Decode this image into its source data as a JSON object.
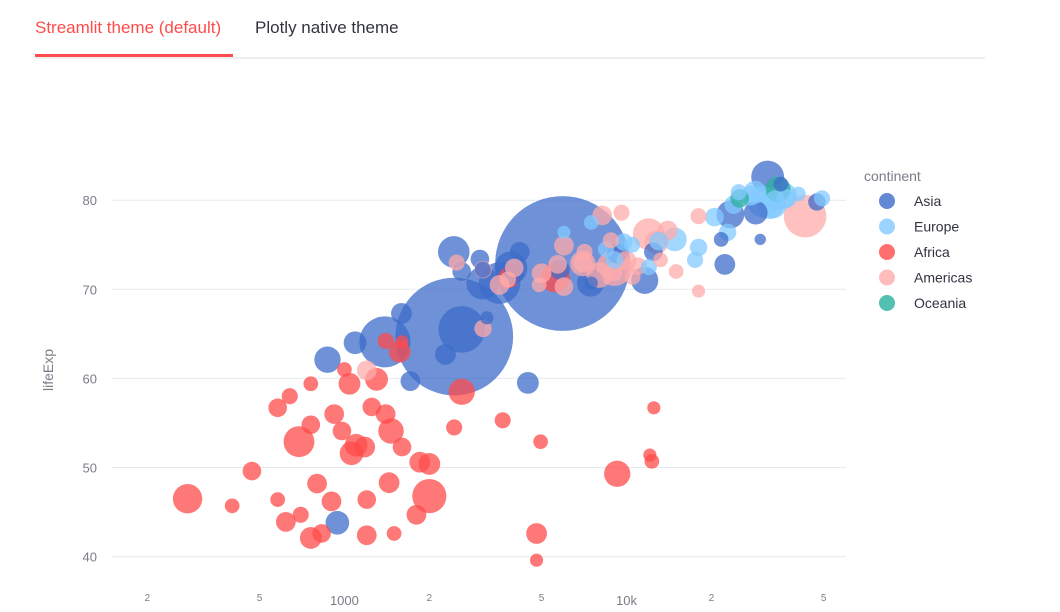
{
  "tabs": [
    {
      "label": "Streamlit theme (default)",
      "active": true
    },
    {
      "label": "Plotly native theme",
      "active": false
    }
  ],
  "chart_data": {
    "type": "scatter",
    "subtype": "bubble",
    "title": "",
    "xlabel": "",
    "ylabel": "lifeExp",
    "x_scale": "log",
    "xlim": [
      150,
      60000
    ],
    "ylim": [
      38.5,
      89
    ],
    "y_ticks": [
      40,
      50,
      60,
      70,
      80
    ],
    "x_ticks": [
      {
        "value": 200,
        "label": "2"
      },
      {
        "value": 500,
        "label": "5"
      },
      {
        "value": 1000,
        "label": "1000"
      },
      {
        "value": 2000,
        "label": "2"
      },
      {
        "value": 5000,
        "label": "5"
      },
      {
        "value": 10000,
        "label": "10k"
      },
      {
        "value": 20000,
        "label": "2"
      },
      {
        "value": 50000,
        "label": "5"
      }
    ],
    "grid": "horizontal",
    "legend": {
      "title": "continent",
      "position": "right"
    },
    "series": [
      {
        "name": "Asia",
        "color": "#3d6cc9",
        "points": [
          [
            5937,
            72.9,
            42
          ],
          [
            2452,
            64.7,
            32
          ],
          [
            2605,
            65.5,
            5
          ],
          [
            1391,
            64.1,
            6
          ],
          [
            3548,
            70.7,
            4
          ],
          [
            3095,
            70.7,
            2.5
          ],
          [
            3890,
            72.4,
            2.5
          ],
          [
            7458,
            70.7,
            1.7
          ],
          [
            11606,
            71.0,
            1.7
          ],
          [
            31656,
            82.6,
            2.5
          ],
          [
            28718,
            78.6,
            1.3
          ],
          [
            2442,
            74.2,
            2.3
          ],
          [
            1091,
            64.0,
            1.2
          ],
          [
            944,
            43.8,
            1.3
          ],
          [
            4471,
            59.5,
            1.1
          ],
          [
            9253,
            74.0,
            0.9
          ],
          [
            1593,
            67.3,
            1.0
          ],
          [
            871,
            62.1,
            1.6
          ],
          [
            22316,
            72.8,
            1.0
          ],
          [
            23348,
            78.4,
            1.8
          ],
          [
            4184,
            74.2,
            0.9
          ],
          [
            3970,
            71.7,
            0.9
          ],
          [
            2281,
            62.7,
            1.0
          ],
          [
            1713,
            59.7,
            0.9
          ],
          [
            3022,
            73.4,
            0.8
          ],
          [
            47307,
            79.8,
            0.7
          ],
          [
            12452,
            74.2,
            0.8
          ],
          [
            2605,
            72.0,
            0.8
          ],
          [
            35278,
            81.8,
            0.5
          ],
          [
            21655,
            75.6,
            0.5
          ],
          [
            3095,
            72.2,
            0.6
          ],
          [
            5800,
            72.2,
            0.9
          ],
          [
            29796,
            75.6,
            0.3
          ],
          [
            7500,
            70.7,
            0.4
          ],
          [
            3200,
            66.8,
            0.4
          ]
        ]
      },
      {
        "name": "Europe",
        "color": "#83c9ff",
        "points": [
          [
            30470,
            79.8,
            2.3
          ],
          [
            32170,
            79.4,
            1.7
          ],
          [
            33203,
            79.4,
            1.5
          ],
          [
            36126,
            80.5,
            1.6
          ],
          [
            28570,
            80.9,
            1.2
          ],
          [
            14843,
            75.6,
            1.3
          ],
          [
            13000,
            75.4,
            0.8
          ],
          [
            20510,
            78.1,
            0.8
          ],
          [
            22833,
            76.4,
            0.7
          ],
          [
            24000,
            79.5,
            0.8
          ],
          [
            36797,
            80.2,
            0.8
          ],
          [
            33692,
            80.0,
            0.9
          ],
          [
            27538,
            80.5,
            0.9
          ],
          [
            10461,
            75.0,
            0.6
          ],
          [
            18008,
            74.7,
            0.7
          ],
          [
            9786,
            75.3,
            0.7
          ],
          [
            8458,
            74.5,
            0.6
          ],
          [
            9065,
            73.3,
            0.7
          ],
          [
            40676,
            80.7,
            0.5
          ],
          [
            49357,
            80.2,
            0.6
          ],
          [
            6000,
            76.4,
            0.4
          ],
          [
            7500,
            77.5,
            0.5
          ],
          [
            17500,
            73.3,
            0.6
          ],
          [
            12000,
            72.5,
            0.6
          ],
          [
            25000,
            80.9,
            0.6
          ]
        ]
      },
      {
        "name": "Africa",
        "color": "#ff4b4b",
        "points": [
          [
            278,
            46.5,
            2.0
          ],
          [
            2000,
            46.8,
            2.7
          ],
          [
            690,
            52.9,
            2.2
          ],
          [
            2605,
            58.5,
            1.6
          ],
          [
            5581,
            71.3,
            2.0
          ],
          [
            1463,
            54.1,
            1.5
          ],
          [
            1060,
            51.6,
            1.3
          ],
          [
            1100,
            52.5,
            1.2
          ],
          [
            9270,
            49.3,
            1.6
          ],
          [
            760,
            42.1,
            1.1
          ],
          [
            1300,
            59.9,
            1.2
          ],
          [
            1180,
            52.3,
            1.0
          ],
          [
            1042,
            59.4,
            1.1
          ],
          [
            1850,
            50.6,
            1.0
          ],
          [
            2000,
            50.4,
            1.1
          ],
          [
            470,
            49.6,
            0.8
          ],
          [
            400,
            45.7,
            0.5
          ],
          [
            580,
            56.7,
            0.8
          ],
          [
            800,
            48.2,
            0.9
          ],
          [
            1200,
            42.4,
            0.9
          ],
          [
            1440,
            48.3,
            1.0
          ],
          [
            1600,
            52.3,
            0.8
          ],
          [
            1800,
            44.7,
            0.9
          ],
          [
            1400,
            56.0,
            0.9
          ],
          [
            1200,
            46.4,
            0.8
          ],
          [
            1570,
            63.0,
            1.1
          ],
          [
            4800,
            42.6,
            1.0
          ],
          [
            3820,
            71.3,
            1.0
          ],
          [
            620,
            43.9,
            0.9
          ],
          [
            760,
            54.8,
            0.8
          ],
          [
            980,
            54.1,
            0.8
          ],
          [
            830,
            42.6,
            0.8
          ],
          [
            1250,
            56.8,
            0.8
          ],
          [
            2450,
            54.5,
            0.6
          ],
          [
            3640,
            55.3,
            0.6
          ],
          [
            4960,
            52.9,
            0.5
          ],
          [
            900,
            46.2,
            0.9
          ],
          [
            920,
            56.0,
            0.9
          ],
          [
            1000,
            61.0,
            0.5
          ],
          [
            1400,
            64.2,
            0.6
          ],
          [
            640,
            58.0,
            0.6
          ],
          [
            760,
            59.4,
            0.5
          ],
          [
            12500,
            56.7,
            0.4
          ],
          [
            12100,
            51.4,
            0.4
          ],
          [
            12300,
            50.7,
            0.5
          ],
          [
            4800,
            39.6,
            0.4
          ],
          [
            700,
            44.7,
            0.6
          ],
          [
            580,
            46.4,
            0.5
          ],
          [
            1500,
            42.6,
            0.5
          ],
          [
            1600,
            64.1,
            0.4
          ]
        ]
      },
      {
        "name": "Americas",
        "color": "#ffabab",
        "points": [
          [
            42952,
            78.2,
            4.2
          ],
          [
            9065,
            72.4,
            3.0
          ],
          [
            11978,
            76.2,
            2.3
          ],
          [
            7000,
            72.9,
            1.5
          ],
          [
            12779,
            75.3,
            1.3
          ],
          [
            8000,
            71.6,
            1.5
          ],
          [
            10000,
            73.2,
            0.9
          ],
          [
            6000,
            74.9,
            0.9
          ],
          [
            7000,
            73.0,
            0.9
          ],
          [
            9000,
            71.9,
            0.8
          ],
          [
            5000,
            71.8,
            0.9
          ],
          [
            6000,
            70.3,
            0.8
          ],
          [
            4000,
            72.4,
            0.8
          ],
          [
            3548,
            70.5,
            0.9
          ],
          [
            3100,
            72.2,
            0.7
          ],
          [
            2500,
            73.0,
            0.6
          ],
          [
            11000,
            72.6,
            0.7
          ],
          [
            14000,
            76.6,
            0.9
          ],
          [
            18000,
            78.2,
            0.6
          ],
          [
            8200,
            78.3,
            0.9
          ],
          [
            9600,
            78.6,
            0.6
          ],
          [
            5700,
            72.8,
            0.8
          ],
          [
            3100,
            65.6,
            0.7
          ],
          [
            1200,
            60.9,
            0.9
          ],
          [
            7100,
            74.2,
            0.6
          ],
          [
            15000,
            72.0,
            0.5
          ],
          [
            10500,
            71.4,
            0.6
          ],
          [
            13200,
            73.3,
            0.5
          ],
          [
            4900,
            70.5,
            0.5
          ],
          [
            18000,
            69.8,
            0.4
          ],
          [
            8800,
            75.5,
            0.6
          ],
          [
            3800,
            71.1,
            0.6
          ]
        ]
      },
      {
        "name": "Oceania",
        "color": "#29b09d",
        "points": [
          [
            34435,
            81.2,
            1.5
          ],
          [
            25185,
            80.2,
            0.8
          ]
        ]
      }
    ]
  }
}
